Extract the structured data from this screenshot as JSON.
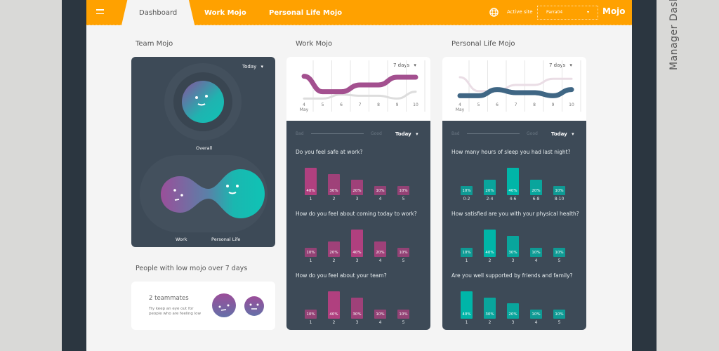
{
  "header": {
    "tabs": [
      "Dashboard",
      "Work Mojo",
      "Personal Life Mojo"
    ],
    "active_site_label": "Active site",
    "active_site_value": "Parra04",
    "logo": "Mojo"
  },
  "side_title": "Manager Dashb",
  "team": {
    "title": "Team Mojo",
    "period": "Today",
    "overall": "Overall",
    "work": "Work",
    "personal": "Personal Life"
  },
  "low": {
    "title": "People with low mojo over 7 days",
    "count": "2 teammates",
    "hint1": "Try keep an eye out for",
    "hint2": "people who are feeling low"
  },
  "work": {
    "title": "Work Mojo",
    "range": "7 days",
    "period": "Today",
    "bad": "Bad",
    "good": "Good",
    "color": "#b0407f",
    "questions": [
      {
        "q": "Do you feel safe at work?",
        "labels": [
          "1",
          "2",
          "3",
          "4",
          "5"
        ],
        "values": [
          40,
          30,
          20,
          10,
          10
        ]
      },
      {
        "q": "How do you feel about coming today to work?",
        "labels": [
          "1",
          "2",
          "3",
          "4",
          "5"
        ],
        "values": [
          10,
          20,
          40,
          20,
          10
        ]
      },
      {
        "q": "How do you feel about your team?",
        "labels": [
          "1",
          "2",
          "3",
          "4",
          "5"
        ],
        "values": [
          10,
          40,
          30,
          10,
          10
        ]
      }
    ]
  },
  "personal": {
    "title": "Personal Life Mojo",
    "range": "7 days",
    "period": "Today",
    "bad": "Bad",
    "good": "Good",
    "color": "#00b5a8",
    "questions": [
      {
        "q": "How many hours of sleep you had last night?",
        "labels": [
          "0-2",
          "2-4",
          "4-6",
          "6-8",
          "8-10"
        ],
        "values": [
          10,
          20,
          40,
          20,
          10
        ]
      },
      {
        "q": "How satisfied are you with your physical health?",
        "labels": [
          "1",
          "2",
          "3",
          "4",
          "5"
        ],
        "values": [
          10,
          40,
          30,
          10,
          10
        ]
      },
      {
        "q": "Are you well supported by friends and family?",
        "labels": [
          "1",
          "2",
          "3",
          "4",
          "5"
        ],
        "values": [
          40,
          30,
          20,
          10,
          10
        ]
      }
    ]
  },
  "chart_data": [
    {
      "type": "line",
      "title": "Work Mojo",
      "x": [
        "4 May",
        "5",
        "6",
        "7",
        "8",
        "9",
        "10"
      ],
      "ylim": [
        0,
        10
      ],
      "series": [
        {
          "name": "work",
          "color": "#a3508f",
          "values": [
            7.8,
            2.8,
            2.8,
            5,
            5,
            7.5,
            7.5
          ]
        },
        {
          "name": "personal",
          "color": "#dddddd",
          "values": [
            0.6,
            0.6,
            1.9,
            1.5,
            1.5,
            0.6,
            2.8
          ]
        }
      ]
    },
    {
      "type": "line",
      "title": "Personal Life Mojo",
      "x": [
        "4 May",
        "5",
        "6",
        "7",
        "8",
        "9",
        "10"
      ],
      "ylim": [
        0,
        10
      ],
      "series": [
        {
          "name": "work",
          "color": "#eadde5",
          "values": [
            7.5,
            3,
            3,
            5,
            5,
            7,
            7
          ]
        },
        {
          "name": "personal",
          "color": "#3f6684",
          "values": [
            1.5,
            1.5,
            3.5,
            2.5,
            2.5,
            1.5,
            3.5
          ]
        }
      ]
    }
  ]
}
